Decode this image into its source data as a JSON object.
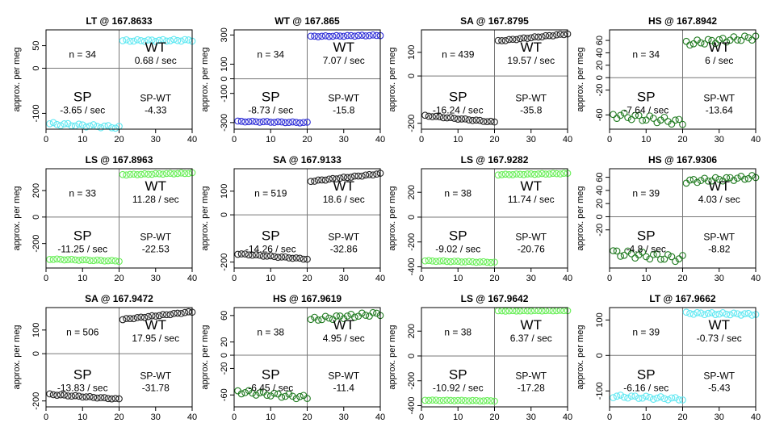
{
  "chart_data": [
    {
      "type": "scatter",
      "title": "LT @ 167.8633",
      "ylabel": "approx. per meg",
      "color": "#5ee8f2",
      "n_text": "n = 34",
      "wt_label": "WT",
      "wt_rate": "0.68 / sec",
      "sp_label": "SP",
      "sp_rate": "-3.65 / sec",
      "diff_label": "SP-WT",
      "diff_value": "-4.33",
      "xlim": [
        0,
        40
      ],
      "ylim": [
        -135,
        85
      ],
      "xticks": [
        0,
        10,
        20,
        30,
        40
      ],
      "yticks": [
        -100,
        0,
        50
      ],
      "sp": {
        "start": -123,
        "end": -131,
        "amp": 3
      },
      "wt": {
        "start": 61,
        "end": 62,
        "amp": 2
      }
    },
    {
      "type": "scatter",
      "title": "WT @ 167.865",
      "ylabel": "approx. per meg",
      "color": "#2b2bd6",
      "n_text": "n = 34",
      "wt_label": "WT",
      "wt_rate": "7.07 / sec",
      "sp_label": "SP",
      "sp_rate": "-8.73 / sec",
      "diff_label": "SP-WT",
      "diff_value": "-15.8",
      "xlim": [
        0,
        40
      ],
      "ylim": [
        -345,
        335
      ],
      "xticks": [
        0,
        10,
        20,
        30,
        40
      ],
      "yticks": [
        -300,
        -100,
        0,
        100,
        300
      ],
      "sp": {
        "start": -292,
        "end": -300,
        "amp": 3
      },
      "wt": {
        "start": 290,
        "end": 298,
        "amp": 3
      }
    },
    {
      "type": "scatter",
      "title": "SA @ 167.8795",
      "ylabel": "approx. per meg",
      "color": "#222222",
      "n_text": "n = 439",
      "wt_label": "WT",
      "wt_rate": "19.57 / sec",
      "sp_label": "SP",
      "sp_rate": "-16.24 / sec",
      "diff_label": "SP-WT",
      "diff_value": "-35.8",
      "xlim": [
        0,
        40
      ],
      "ylim": [
        -225,
        195
      ],
      "xticks": [
        0,
        10,
        20,
        30,
        40
      ],
      "yticks": [
        -200,
        0,
        100
      ],
      "sp": {
        "start": -168,
        "end": -195,
        "amp": 2
      },
      "wt": {
        "start": 148,
        "end": 178,
        "amp": 2
      }
    },
    {
      "type": "scatter",
      "title": "HS @ 167.8942",
      "ylabel": "approx. per meg",
      "color": "#1f7a1f",
      "n_text": "n = 34",
      "wt_label": "WT",
      "wt_rate": "6 / sec",
      "sp_label": "SP",
      "sp_rate": "-7.64 / sec",
      "diff_label": "SP-WT",
      "diff_value": "-13.64",
      "xlim": [
        0,
        40
      ],
      "ylim": [
        -83,
        77
      ],
      "xticks": [
        0,
        10,
        20,
        30,
        40
      ],
      "yticks": [
        -60,
        -20,
        0,
        20,
        40,
        60
      ],
      "sp": {
        "start": -60,
        "end": -72,
        "amp": 5
      },
      "wt": {
        "start": 55,
        "end": 65,
        "amp": 4
      }
    },
    {
      "type": "scatter",
      "title": "LS @ 167.8963",
      "ylabel": "approx. per meg",
      "color": "#66ee55",
      "n_text": "n = 33",
      "wt_label": "WT",
      "wt_rate": "11.28 / sec",
      "sp_label": "SP",
      "sp_rate": "-11.25 / sec",
      "diff_label": "SP-WT",
      "diff_value": "-22.53",
      "xlim": [
        0,
        40
      ],
      "ylim": [
        -385,
        365
      ],
      "xticks": [
        0,
        10,
        20,
        30,
        40
      ],
      "yticks": [
        -200,
        0,
        200
      ],
      "sp": {
        "start": -318,
        "end": -332,
        "amp": 3
      },
      "wt": {
        "start": 320,
        "end": 332,
        "amp": 3
      }
    },
    {
      "type": "scatter",
      "title": "SA @ 167.9133",
      "ylabel": "approx. per meg",
      "color": "#222222",
      "n_text": "n = 519",
      "wt_label": "WT",
      "wt_rate": "18.6 / sec",
      "sp_label": "SP",
      "sp_rate": "-14.26 / sec",
      "diff_label": "SP-WT",
      "diff_value": "-32.86",
      "xlim": [
        0,
        40
      ],
      "ylim": [
        -225,
        195
      ],
      "xticks": [
        0,
        10,
        20,
        30,
        40
      ],
      "yticks": [
        -200,
        0,
        100
      ],
      "sp": {
        "start": -165,
        "end": -187,
        "amp": 2
      },
      "wt": {
        "start": 142,
        "end": 174,
        "amp": 2
      }
    },
    {
      "type": "scatter",
      "title": "LS @ 167.9282",
      "ylabel": "approx. per meg",
      "color": "#66ee55",
      "n_text": "n = 38",
      "wt_label": "WT",
      "wt_rate": "11.74 / sec",
      "sp_label": "SP",
      "sp_rate": "-9.02 / sec",
      "diff_label": "SP-WT",
      "diff_value": "-20.76",
      "xlim": [
        0,
        40
      ],
      "ylim": [
        -410,
        390
      ],
      "xticks": [
        0,
        10,
        20,
        30,
        40
      ],
      "yticks": [
        -400,
        -200,
        0,
        200
      ],
      "sp": {
        "start": -352,
        "end": -364,
        "amp": 3
      },
      "wt": {
        "start": 342,
        "end": 352,
        "amp": 3
      }
    },
    {
      "type": "scatter",
      "title": "HS @ 167.9306",
      "ylabel": "approx. per meg",
      "color": "#1f7a1f",
      "n_text": "n = 39",
      "wt_label": "WT",
      "wt_rate": "4.03 / sec",
      "sp_label": "SP",
      "sp_rate": "-4.8 / sec",
      "diff_label": "SP-WT",
      "diff_value": "-8.82",
      "xlim": [
        0,
        40
      ],
      "ylim": [
        -78,
        73
      ],
      "xticks": [
        0,
        10,
        20,
        30,
        40
      ],
      "yticks": [
        -20,
        0,
        20,
        40,
        60
      ],
      "sp": {
        "start": -55,
        "end": -64,
        "amp": 5
      },
      "wt": {
        "start": 54,
        "end": 60,
        "amp": 3
      }
    },
    {
      "type": "scatter",
      "title": "SA @ 167.9472",
      "ylabel": "approx. per meg",
      "color": "#222222",
      "n_text": "n = 506",
      "wt_label": "WT",
      "wt_rate": "17.95 / sec",
      "sp_label": "SP",
      "sp_rate": "-13.83 / sec",
      "diff_label": "SP-WT",
      "diff_value": "-31.78",
      "xlim": [
        0,
        40
      ],
      "ylim": [
        -225,
        195
      ],
      "xticks": [
        0,
        10,
        20,
        30,
        40
      ],
      "yticks": [
        -200,
        0,
        100
      ],
      "sp": {
        "start": -172,
        "end": -192,
        "amp": 2
      },
      "wt": {
        "start": 145,
        "end": 177,
        "amp": 2
      }
    },
    {
      "type": "scatter",
      "title": "HS @ 167.9619",
      "ylabel": "approx. per meg",
      "color": "#1f7a1f",
      "n_text": "n = 38",
      "wt_label": "WT",
      "wt_rate": "4.95 / sec",
      "sp_label": "SP",
      "sp_rate": "-6.45 / sec",
      "diff_label": "SP-WT",
      "diff_value": "-11.4",
      "xlim": [
        0,
        40
      ],
      "ylim": [
        -78,
        72
      ],
      "xticks": [
        0,
        10,
        20,
        30,
        40
      ],
      "yticks": [
        -60,
        -20,
        0,
        20,
        60
      ],
      "sp": {
        "start": -55,
        "end": -64,
        "amp": 3
      },
      "wt": {
        "start": 54,
        "end": 63,
        "amp": 3
      }
    },
    {
      "type": "scatter",
      "title": "LS @ 167.9642",
      "ylabel": "approx. per meg",
      "color": "#66ee55",
      "n_text": "n = 38",
      "wt_label": "WT",
      "wt_rate": "6.37 / sec",
      "sp_label": "SP",
      "sp_rate": "-10.92 / sec",
      "diff_label": "SP-WT",
      "diff_value": "-17.28",
      "xlim": [
        0,
        40
      ],
      "ylim": [
        -410,
        390
      ],
      "xticks": [
        0,
        10,
        20,
        30,
        40
      ],
      "yticks": [
        -400,
        -200,
        0,
        200
      ],
      "sp": {
        "start": -356,
        "end": -362,
        "amp": 2
      },
      "wt": {
        "start": 363,
        "end": 366,
        "amp": 2
      }
    },
    {
      "type": "scatter",
      "title": "LT @ 167.9662",
      "ylabel": "approx. per meg",
      "color": "#5ee8f2",
      "n_text": "n = 39",
      "wt_label": "WT",
      "wt_rate": "-0.73 / sec",
      "sp_label": "SP",
      "sp_rate": "-6.16 / sec",
      "diff_label": "SP-WT",
      "diff_value": "-5.43",
      "xlim": [
        0,
        40
      ],
      "ylim": [
        -145,
        135
      ],
      "xticks": [
        0,
        10,
        20,
        30,
        40
      ],
      "yticks": [
        -100,
        0,
        100
      ],
      "sp": {
        "start": -115,
        "end": -123,
        "amp": 4
      },
      "wt": {
        "start": 119,
        "end": 116,
        "amp": 3
      }
    }
  ]
}
